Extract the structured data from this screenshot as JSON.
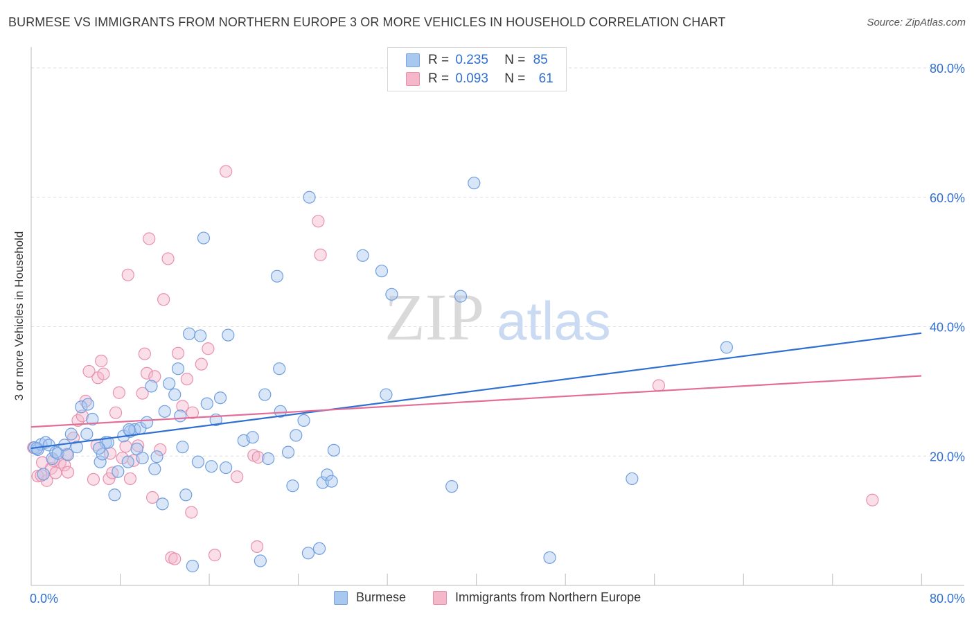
{
  "title": "BURMESE VS IMMIGRANTS FROM NORTHERN EUROPE 3 OR MORE VEHICLES IN HOUSEHOLD CORRELATION CHART",
  "source": "Source: ZipAtlas.com",
  "watermark": {
    "zip": "ZIP",
    "atlas": "atlas"
  },
  "legend_top": {
    "burmese": {
      "r_label": "R =",
      "r_value": "0.235",
      "n_label": "N =",
      "n_value": "85"
    },
    "immigrants": {
      "r_label": "R =",
      "r_value": "0.093",
      "n_label": "N =",
      "n_value": "61"
    }
  },
  "legend_bottom": {
    "burmese": "Burmese",
    "immigrants": "Immigrants from Northern Europe"
  },
  "colors": {
    "blue": "#2f6fd1",
    "blue_fill": "#a9c8f0",
    "pink": "#e36d96",
    "pink_fill": "#f5b8cb",
    "grid": "#dddddd"
  },
  "chart_data": {
    "type": "scatter",
    "title": "BURMESE VS IMMIGRANTS FROM NORTHERN EUROPE 3 OR MORE VEHICLES IN HOUSEHOLD CORRELATION CHART",
    "xlabel": "",
    "ylabel": "3 or more Vehicles in Household",
    "xlim": [
      0,
      80
    ],
    "ylim": [
      0,
      80
    ],
    "x_tick_labels": [
      "0.0%",
      "80.0%"
    ],
    "y_tick_labels": [
      "20.0%",
      "40.0%",
      "60.0%",
      "80.0%"
    ],
    "y_ticks": [
      20,
      40,
      60,
      80
    ],
    "series": [
      {
        "name": "Burmese",
        "r": 0.235,
        "n": 85,
        "trend": {
          "x": [
            0,
            80
          ],
          "y": [
            21.2,
            39.0
          ]
        },
        "points": [
          [
            0.3,
            21.3
          ],
          [
            0.6,
            21.0
          ],
          [
            0.9,
            21.8
          ],
          [
            1.1,
            17.2
          ],
          [
            1.3,
            22.1
          ],
          [
            1.6,
            21.7
          ],
          [
            1.9,
            19.6
          ],
          [
            2.2,
            20.6
          ],
          [
            2.4,
            20.4
          ],
          [
            3.0,
            21.7
          ],
          [
            3.3,
            20.2
          ],
          [
            3.6,
            23.4
          ],
          [
            4.1,
            21.4
          ],
          [
            4.5,
            27.6
          ],
          [
            5.0,
            23.4
          ],
          [
            5.1,
            28.0
          ],
          [
            5.5,
            25.7
          ],
          [
            6.2,
            19.1
          ],
          [
            6.4,
            20.3
          ],
          [
            6.7,
            22.1
          ],
          [
            6.9,
            22.1
          ],
          [
            7.5,
            14.0
          ],
          [
            7.8,
            17.6
          ],
          [
            8.3,
            23.1
          ],
          [
            8.7,
            19.1
          ],
          [
            8.9,
            23.8
          ],
          [
            9.3,
            24.1
          ],
          [
            9.5,
            21.1
          ],
          [
            9.8,
            24.3
          ],
          [
            10.0,
            19.7
          ],
          [
            10.4,
            25.2
          ],
          [
            10.8,
            30.8
          ],
          [
            11.1,
            18.0
          ],
          [
            11.3,
            19.9
          ],
          [
            11.8,
            12.6
          ],
          [
            12.0,
            26.9
          ],
          [
            12.4,
            31.2
          ],
          [
            12.9,
            29.5
          ],
          [
            13.2,
            33.5
          ],
          [
            13.4,
            26.2
          ],
          [
            13.6,
            21.4
          ],
          [
            13.9,
            14.0
          ],
          [
            14.2,
            38.9
          ],
          [
            15.0,
            19.1
          ],
          [
            15.2,
            38.6
          ],
          [
            15.5,
            53.7
          ],
          [
            15.8,
            28.1
          ],
          [
            16.2,
            18.4
          ],
          [
            16.6,
            25.6
          ],
          [
            17.0,
            29.0
          ],
          [
            17.5,
            18.2
          ],
          [
            17.7,
            38.7
          ],
          [
            19.1,
            22.4
          ],
          [
            19.9,
            22.9
          ],
          [
            20.6,
            3.8
          ],
          [
            21.0,
            29.5
          ],
          [
            21.3,
            19.6
          ],
          [
            22.1,
            47.8
          ],
          [
            22.3,
            33.5
          ],
          [
            22.4,
            26.9
          ],
          [
            23.1,
            20.6
          ],
          [
            23.5,
            15.4
          ],
          [
            23.8,
            23.2
          ],
          [
            24.5,
            25.5
          ],
          [
            24.9,
            5.0
          ],
          [
            25.0,
            60.0
          ],
          [
            25.9,
            5.7
          ],
          [
            26.2,
            15.9
          ],
          [
            26.6,
            17.1
          ],
          [
            27.0,
            16.1
          ],
          [
            27.2,
            20.9
          ],
          [
            29.8,
            51.0
          ],
          [
            31.5,
            48.6
          ],
          [
            31.9,
            29.5
          ],
          [
            32.4,
            45.0
          ],
          [
            37.8,
            15.3
          ],
          [
            38.6,
            44.7
          ],
          [
            39.8,
            62.2
          ],
          [
            46.6,
            4.3
          ],
          [
            54.0,
            16.5
          ],
          [
            62.5,
            36.8
          ],
          [
            14.5,
            3.0
          ],
          [
            6.1,
            21.2
          ],
          [
            8.8,
            24.1
          ],
          [
            0.5,
            21.2
          ]
        ]
      },
      {
        "name": "Immigrants from Northern Europe",
        "r": 0.093,
        "n": 61,
        "trend": {
          "x": [
            0,
            80
          ],
          "y": [
            24.5,
            32.4
          ]
        },
        "points": [
          [
            0.2,
            21.3
          ],
          [
            0.6,
            16.9
          ],
          [
            1.0,
            19.0
          ],
          [
            1.4,
            16.2
          ],
          [
            1.8,
            18.1
          ],
          [
            2.2,
            17.4
          ],
          [
            2.6,
            19.0
          ],
          [
            3.0,
            18.6
          ],
          [
            3.3,
            17.5
          ],
          [
            3.8,
            22.8
          ],
          [
            4.2,
            25.5
          ],
          [
            4.6,
            26.2
          ],
          [
            4.9,
            28.5
          ],
          [
            5.2,
            33.1
          ],
          [
            5.6,
            16.4
          ],
          [
            6.0,
            32.1
          ],
          [
            6.3,
            34.7
          ],
          [
            6.5,
            32.7
          ],
          [
            7.0,
            16.5
          ],
          [
            7.3,
            17.4
          ],
          [
            7.6,
            26.7
          ],
          [
            7.9,
            29.8
          ],
          [
            8.2,
            19.7
          ],
          [
            8.5,
            21.5
          ],
          [
            8.7,
            48.0
          ],
          [
            8.9,
            16.5
          ],
          [
            9.2,
            19.3
          ],
          [
            9.6,
            21.6
          ],
          [
            10.0,
            29.7
          ],
          [
            10.2,
            35.8
          ],
          [
            10.4,
            32.8
          ],
          [
            10.6,
            53.6
          ],
          [
            10.9,
            13.6
          ],
          [
            11.1,
            32.3
          ],
          [
            11.6,
            21.0
          ],
          [
            11.9,
            44.2
          ],
          [
            12.3,
            50.5
          ],
          [
            12.6,
            4.3
          ],
          [
            12.9,
            4.1
          ],
          [
            13.2,
            35.9
          ],
          [
            13.6,
            27.7
          ],
          [
            14.0,
            31.9
          ],
          [
            14.4,
            11.3
          ],
          [
            14.5,
            26.7
          ],
          [
            15.3,
            34.2
          ],
          [
            15.9,
            36.6
          ],
          [
            16.5,
            4.7
          ],
          [
            17.5,
            64.0
          ],
          [
            18.5,
            16.8
          ],
          [
            20.0,
            20.1
          ],
          [
            20.3,
            6.0
          ],
          [
            20.4,
            19.8
          ],
          [
            25.8,
            56.3
          ],
          [
            26.0,
            51.1
          ],
          [
            56.4,
            30.9
          ],
          [
            75.6,
            13.2
          ],
          [
            3.2,
            20.3
          ],
          [
            5.9,
            21.7
          ],
          [
            7.1,
            20.4
          ],
          [
            2.0,
            19.3
          ],
          [
            0.9,
            17.0
          ]
        ]
      }
    ]
  }
}
